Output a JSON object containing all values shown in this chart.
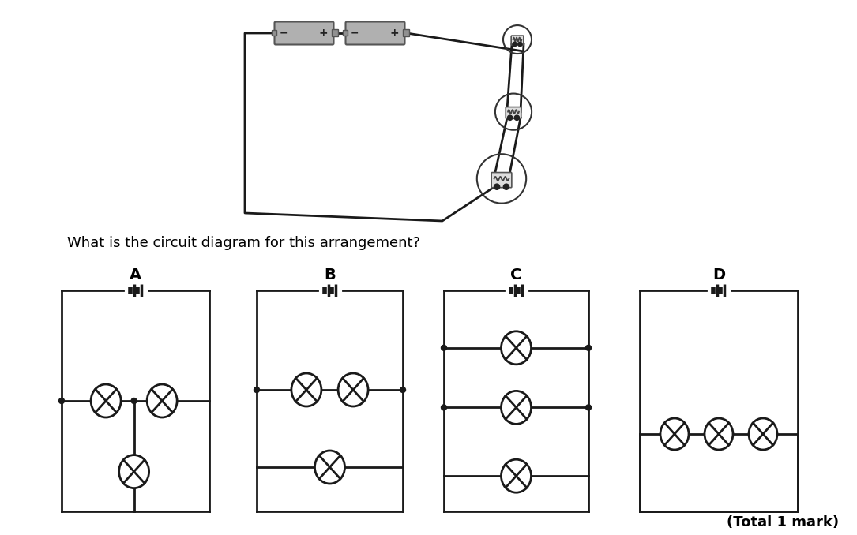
{
  "bg_color": "#ffffff",
  "text_color": "#000000",
  "line_color": "#1a1a1a",
  "question_text": "What is the circuit diagram for this arrangement?",
  "total_mark_text": "(Total 1 mark)",
  "labels": [
    "A",
    "B",
    "C",
    "D"
  ],
  "question_fontsize": 13,
  "label_fontsize": 14,
  "mark_fontsize": 13,
  "lw": 2.0
}
